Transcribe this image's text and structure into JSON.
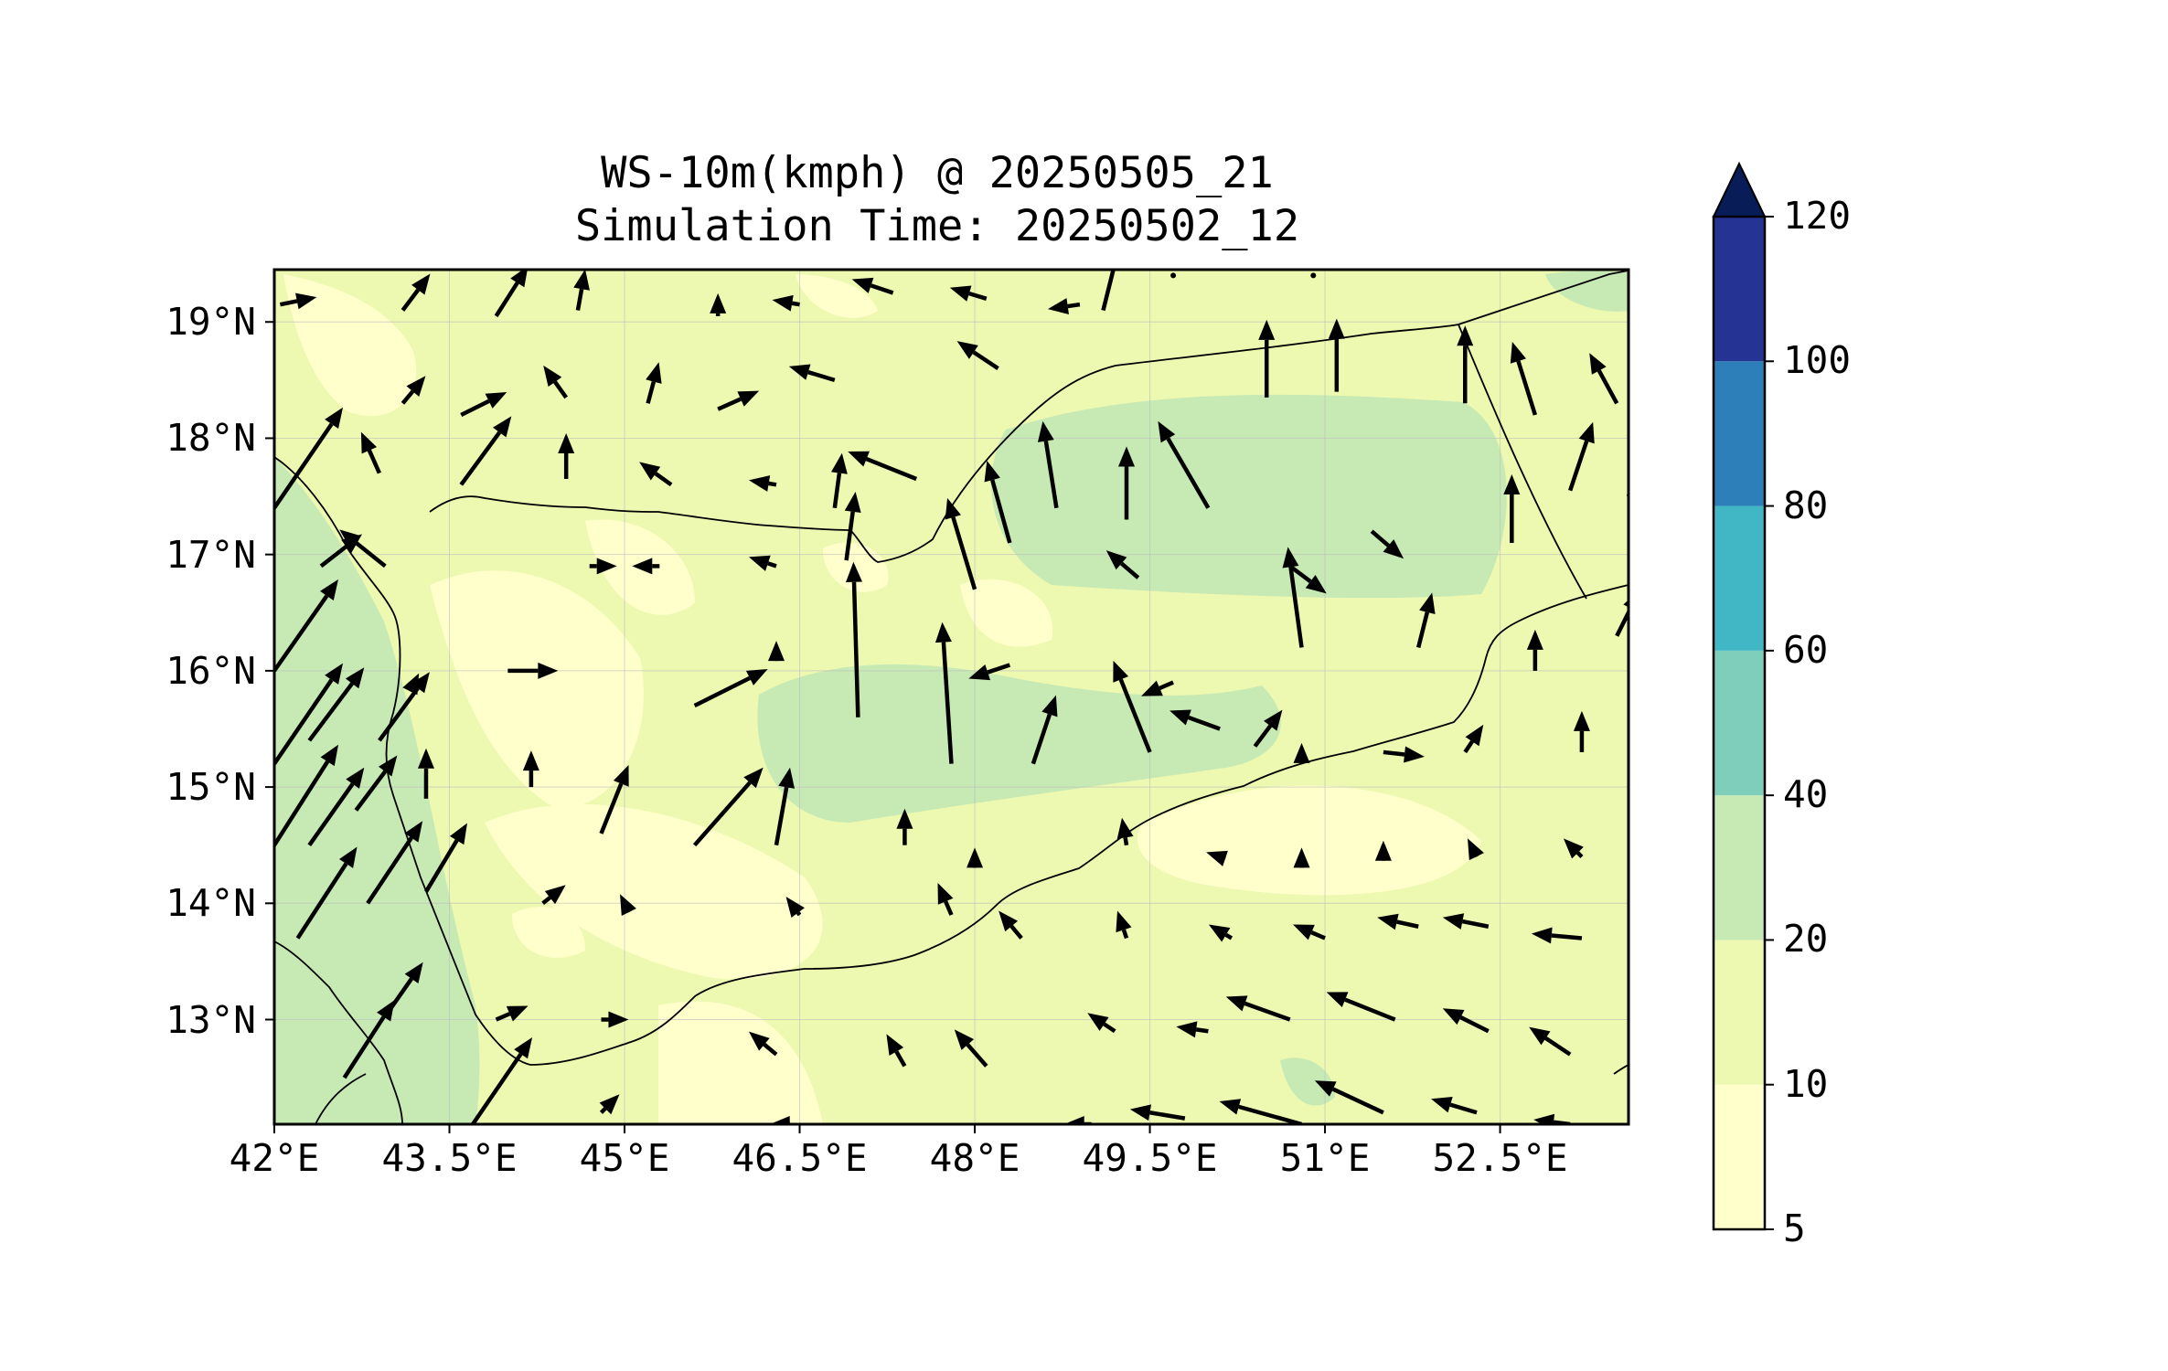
{
  "title": {
    "line1": "WS-10m(kmph) @ 20250505_21",
    "line2": "Simulation Time: 20250502_12"
  },
  "map": {
    "lat_range": [
      12.1,
      19.45
    ],
    "lon_range": [
      42.0,
      53.6
    ],
    "lat_ticks": [
      {
        "value": 19,
        "label": "19°N"
      },
      {
        "value": 18,
        "label": "18°N"
      },
      {
        "value": 17,
        "label": "17°N"
      },
      {
        "value": 16,
        "label": "16°N"
      },
      {
        "value": 15,
        "label": "15°N"
      },
      {
        "value": 14,
        "label": "14°N"
      },
      {
        "value": 13,
        "label": "13°N"
      }
    ],
    "lon_ticks": [
      {
        "value": 42.0,
        "label": "42°E"
      },
      {
        "value": 43.5,
        "label": "43.5°E"
      },
      {
        "value": 45.0,
        "label": "45°E"
      },
      {
        "value": 46.5,
        "label": "46.5°E"
      },
      {
        "value": 48.0,
        "label": "48°E"
      },
      {
        "value": 49.5,
        "label": "49.5°E"
      },
      {
        "value": 51.0,
        "label": "51°E"
      },
      {
        "value": 52.5,
        "label": "52.5°E"
      }
    ],
    "grid": true,
    "field_colors": {
      "5-10": "#ffffcc",
      "10-20": "#edf8b1",
      "20-40": "#c7e9b4"
    }
  },
  "colorbar": {
    "levels": [
      5,
      10,
      20,
      40,
      60,
      80,
      100,
      120
    ],
    "labels": [
      "5",
      "10",
      "20",
      "40",
      "60",
      "80",
      "100",
      "120"
    ],
    "colors": [
      "#ffffcc",
      "#edf8b1",
      "#c7e9b4",
      "#7fcdbb",
      "#41b6c4",
      "#2c7fb8",
      "#253494"
    ],
    "extend_color": "#081d58",
    "extend": "max"
  }
}
